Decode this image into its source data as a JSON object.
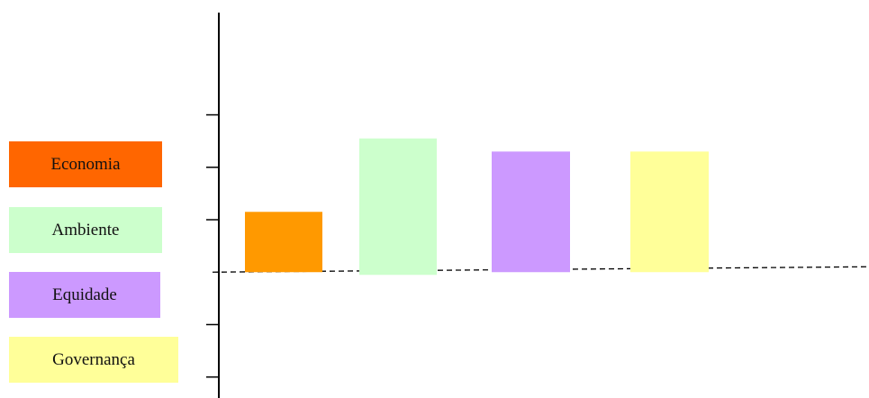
{
  "chart_data": {
    "type": "bar",
    "categories": [
      "Economia",
      "Ambiente",
      "Equidade",
      "Governança"
    ],
    "values": [
      1.15,
      2.55,
      2.3,
      2.3
    ],
    "ylim": [
      -2.4,
      4.95
    ],
    "y_ticks": [
      -2,
      -1,
      1,
      2,
      3
    ],
    "axis_tick_labels_shown": false,
    "baseline": "dashed",
    "legend_position": "left",
    "legend": [
      {
        "label": "Economia",
        "color": "#ff6600"
      },
      {
        "label": "Ambiente",
        "color": "#ccffcc"
      },
      {
        "label": "Equidade",
        "color": "#cc99ff"
      },
      {
        "label": "Governança",
        "color": "#ffff99"
      }
    ],
    "bar_colors": [
      "#ff9900",
      "#ccffcc",
      "#cc99ff",
      "#ffff99"
    ]
  }
}
